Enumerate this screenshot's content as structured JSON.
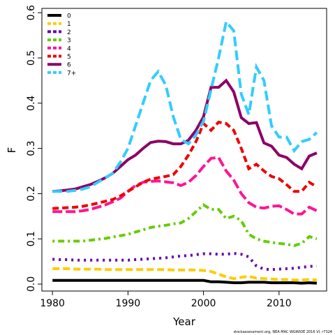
{
  "chart_data": {
    "type": "line",
    "xlabel": "Year",
    "ylabel": "F",
    "footnote": "stockassessment.org, NEA MAC WGWIDE 2016 VI, r7324",
    "x": [
      1980,
      1981,
      1982,
      1983,
      1984,
      1985,
      1986,
      1987,
      1988,
      1989,
      1990,
      1991,
      1992,
      1993,
      1994,
      1995,
      1996,
      1997,
      1998,
      1999,
      2000,
      2001,
      2002,
      2003,
      2004,
      2005,
      2006,
      2007,
      2008,
      2009,
      2010,
      2011,
      2012,
      2013,
      2014,
      2015
    ],
    "xlim": [
      1978.6,
      2016.3
    ],
    "xticks": [
      1980,
      1990,
      2000,
      2010
    ],
    "ylim": [
      -0.0154,
      0.6096
    ],
    "yticks": [
      {
        "value": 0,
        "label": "0.0"
      },
      0.1,
      0.2,
      0.3,
      0.4,
      0.5,
      0.6
    ],
    "legend": "upper left",
    "series": [
      {
        "name": "0",
        "color": "#000000",
        "values": [
          0.008,
          0.008,
          0.008,
          0.008,
          0.008,
          0.008,
          0.008,
          0.008,
          0.008,
          0.008,
          0.008,
          0.008,
          0.008,
          0.008,
          0.008,
          0.008,
          0.008,
          0.008,
          0.008,
          0.008,
          0.008,
          0.005,
          0.005,
          0.004,
          0.003,
          0.003,
          0.004,
          0.004,
          0.004,
          0.003,
          0.003,
          0.003,
          0.003,
          0.002,
          0.003,
          0.002
        ]
      },
      {
        "name": "1",
        "color": "#ffcc00",
        "values": [
          0.034,
          0.034,
          0.034,
          0.033,
          0.033,
          0.033,
          0.033,
          0.032,
          0.032,
          0.032,
          0.032,
          0.032,
          0.032,
          0.032,
          0.032,
          0.032,
          0.031,
          0.031,
          0.031,
          0.031,
          0.03,
          0.028,
          0.022,
          0.016,
          0.012,
          0.015,
          0.017,
          0.013,
          0.012,
          0.011,
          0.01,
          0.01,
          0.009,
          0.009,
          0.01,
          0.009
        ]
      },
      {
        "name": "2",
        "color": "#6600aa",
        "values": [
          0.055,
          0.054,
          0.054,
          0.053,
          0.053,
          0.053,
          0.053,
          0.053,
          0.053,
          0.053,
          0.053,
          0.054,
          0.055,
          0.056,
          0.057,
          0.058,
          0.06,
          0.062,
          0.063,
          0.065,
          0.067,
          0.067,
          0.066,
          0.066,
          0.068,
          0.066,
          0.06,
          0.04,
          0.033,
          0.032,
          0.033,
          0.034,
          0.035,
          0.037,
          0.039,
          0.04
        ]
      },
      {
        "name": "3",
        "color": "#66cc00",
        "values": [
          0.095,
          0.095,
          0.095,
          0.095,
          0.095,
          0.097,
          0.099,
          0.101,
          0.104,
          0.107,
          0.11,
          0.115,
          0.12,
          0.125,
          0.128,
          0.13,
          0.133,
          0.135,
          0.145,
          0.16,
          0.175,
          0.165,
          0.165,
          0.145,
          0.15,
          0.14,
          0.11,
          0.1,
          0.095,
          0.092,
          0.09,
          0.088,
          0.085,
          0.09,
          0.105,
          0.1
        ]
      },
      {
        "name": "4",
        "color": "#ff1493",
        "values": [
          0.16,
          0.16,
          0.16,
          0.16,
          0.162,
          0.165,
          0.17,
          0.175,
          0.182,
          0.19,
          0.205,
          0.218,
          0.225,
          0.227,
          0.228,
          0.226,
          0.224,
          0.218,
          0.225,
          0.24,
          0.26,
          0.278,
          0.28,
          0.25,
          0.23,
          0.2,
          0.18,
          0.17,
          0.168,
          0.172,
          0.173,
          0.165,
          0.155,
          0.155,
          0.17,
          0.162
        ]
      },
      {
        "name": "5",
        "color": "#ee0000",
        "values": [
          0.167,
          0.168,
          0.169,
          0.17,
          0.172,
          0.175,
          0.179,
          0.183,
          0.187,
          0.195,
          0.205,
          0.215,
          0.225,
          0.232,
          0.235,
          0.238,
          0.242,
          0.26,
          0.285,
          0.315,
          0.355,
          0.34,
          0.358,
          0.355,
          0.34,
          0.3,
          0.255,
          0.265,
          0.25,
          0.238,
          0.233,
          0.22,
          0.205,
          0.205,
          0.225,
          0.215
        ]
      },
      {
        "name": "6",
        "color": "#8b0066",
        "values": [
          0.205,
          0.206,
          0.208,
          0.21,
          0.215,
          0.22,
          0.227,
          0.235,
          0.245,
          0.26,
          0.275,
          0.285,
          0.3,
          0.313,
          0.316,
          0.315,
          0.31,
          0.31,
          0.318,
          0.34,
          0.37,
          0.435,
          0.435,
          0.45,
          0.425,
          0.368,
          0.355,
          0.357,
          0.312,
          0.305,
          0.285,
          0.28,
          0.265,
          0.255,
          0.283,
          0.29
        ]
      },
      {
        "name": "7+",
        "color": "#33ccff",
        "values": [
          0.205,
          0.205,
          0.205,
          0.207,
          0.21,
          0.215,
          0.225,
          0.235,
          0.245,
          0.27,
          0.3,
          0.35,
          0.4,
          0.45,
          0.47,
          0.44,
          0.37,
          0.32,
          0.31,
          0.33,
          0.36,
          0.43,
          0.5,
          0.58,
          0.56,
          0.42,
          0.375,
          0.48,
          0.45,
          0.35,
          0.325,
          0.325,
          0.295,
          0.315,
          0.32,
          0.335
        ]
      }
    ]
  }
}
